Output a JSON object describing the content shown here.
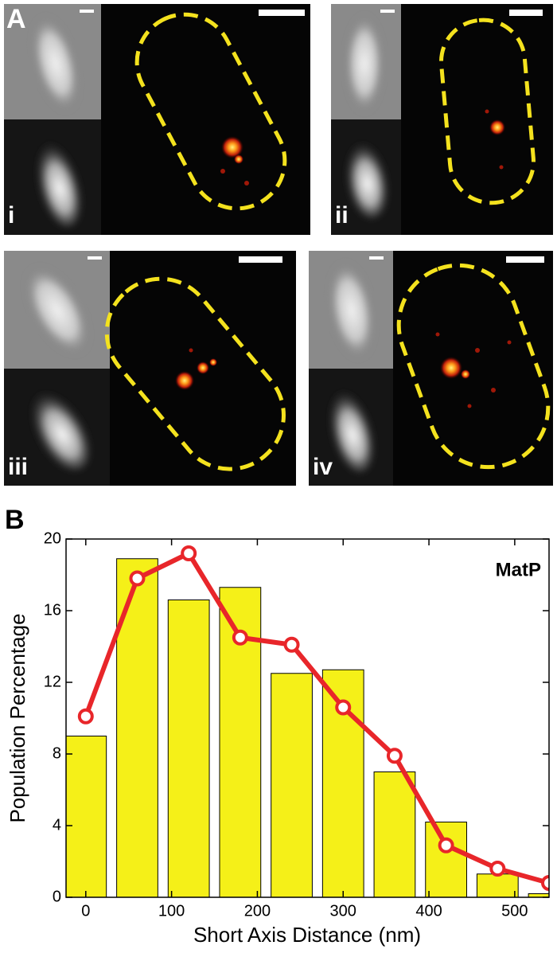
{
  "panel_a": {
    "label": "A",
    "panels": [
      "i",
      "ii",
      "iii",
      "iv"
    ]
  },
  "chart_data": {
    "type": "bar",
    "panel_label": "B",
    "annotation": "MatP",
    "x_label": "Short Axis Distance (nm)",
    "y_label": "Population Percentage",
    "x": [
      0,
      60,
      120,
      180,
      240,
      300,
      360,
      420,
      480,
      540
    ],
    "series": [
      {
        "type": "bar",
        "color": "#f5f018",
        "values": [
          9.0,
          18.9,
          16.6,
          17.3,
          12.5,
          12.7,
          7.0,
          4.2,
          1.3,
          0.2
        ]
      },
      {
        "type": "line",
        "color": "#e8262a",
        "values": [
          10.1,
          17.8,
          19.2,
          14.5,
          14.1,
          10.6,
          7.9,
          2.9,
          1.6,
          0.8
        ]
      }
    ],
    "xlim": [
      -23,
      540
    ],
    "ylim": [
      0,
      20
    ],
    "xticks": [
      0,
      100,
      200,
      300,
      400,
      500
    ],
    "yticks": [
      0,
      4,
      8,
      12,
      16,
      20
    ]
  }
}
